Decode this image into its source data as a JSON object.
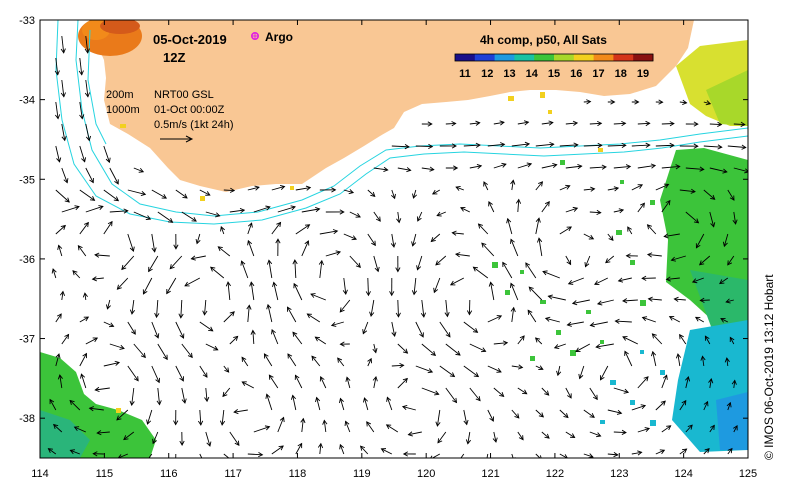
{
  "title": {
    "date": "05-Oct-2019",
    "hour": "12Z",
    "argo_label": "Argo"
  },
  "info": {
    "isobath_shallow": "200m",
    "isobath_deep": "1000m",
    "product": "NRT00 GSL",
    "analysis_time": "01-Oct 00:00Z",
    "scale_label": "0.5m/s (1kt 24h)"
  },
  "colorbar": {
    "title": "4h comp, p50, All Sats",
    "ticks": [
      "11",
      "12",
      "13",
      "14",
      "15",
      "16",
      "17",
      "18",
      "19"
    ],
    "colors": [
      "#1a0f8a",
      "#1f3fd6",
      "#1e9ae0",
      "#19c2a3",
      "#3cc43a",
      "#a8d82a",
      "#f2d01f",
      "#f28a1a",
      "#d4341a",
      "#8a1010"
    ]
  },
  "credit": "© IMOS 06-Oct-2019 13:12 Hobart",
  "axes": {
    "x_ticks": [
      "114",
      "115",
      "116",
      "117",
      "118",
      "119",
      "120",
      "121",
      "122",
      "123",
      "124",
      "125"
    ],
    "y_ticks": [
      "-33",
      "-34",
      "-35",
      "-36",
      "-37",
      "-38"
    ],
    "lon_range": [
      114,
      125
    ],
    "lat_range": [
      -38.5,
      -33
    ]
  },
  "colors": {
    "land": "#f9c794",
    "isobath": "#26d4e0",
    "argo": "#e020e0",
    "arrow": "#000000"
  }
}
